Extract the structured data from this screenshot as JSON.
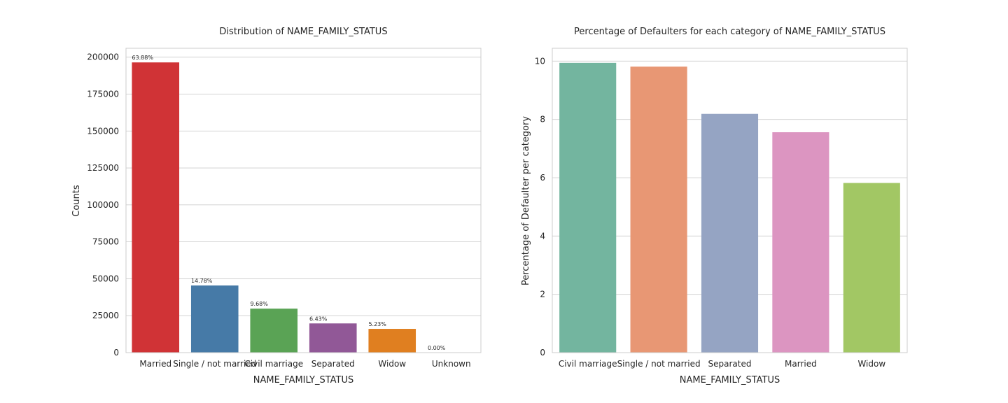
{
  "chart_data": [
    {
      "type": "bar",
      "title": "Distribution of NAME_FAMILY_STATUS",
      "xlabel": "NAME_FAMILY_STATUS",
      "ylabel": "Counts",
      "categories": [
        "Married",
        "Single / not married",
        "Civil marriage",
        "Separated",
        "Widow",
        "Unknown"
      ],
      "values": [
        196432,
        45444,
        29775,
        19770,
        16088,
        2
      ],
      "data_labels": [
        "63.88%",
        "14.78%",
        "9.68%",
        "6.43%",
        "5.23%",
        "0.00%"
      ],
      "colors": [
        "#d03336",
        "#467aa7",
        "#5aa355",
        "#915897",
        "#e07f20",
        "#ffff33"
      ],
      "ylim": [
        0,
        206000
      ],
      "yticks": [
        0,
        25000,
        50000,
        75000,
        100000,
        125000,
        150000,
        175000,
        200000
      ],
      "ytick_labels": [
        "0",
        "25000",
        "50000",
        "75000",
        "100000",
        "125000",
        "150000",
        "175000",
        "200000"
      ],
      "grid": true
    },
    {
      "type": "bar",
      "title": "Percentage of Defaulters for each category of NAME_FAMILY_STATUS",
      "xlabel": "NAME_FAMILY_STATUS",
      "ylabel": "Percentage of Defaulter per category",
      "categories": [
        "Civil marriage",
        "Single / not married",
        "Separated",
        "Married",
        "Widow"
      ],
      "values": [
        9.94,
        9.81,
        8.19,
        7.56,
        5.82
      ],
      "colors": [
        "#73b59f",
        "#e89774",
        "#95a4c3",
        "#dc95c1",
        "#a2c764"
      ],
      "ylim": [
        0,
        10.44
      ],
      "yticks": [
        0,
        2,
        4,
        6,
        8,
        10
      ],
      "ytick_labels": [
        "0",
        "2",
        "4",
        "6",
        "8",
        "10"
      ],
      "grid": true
    }
  ]
}
